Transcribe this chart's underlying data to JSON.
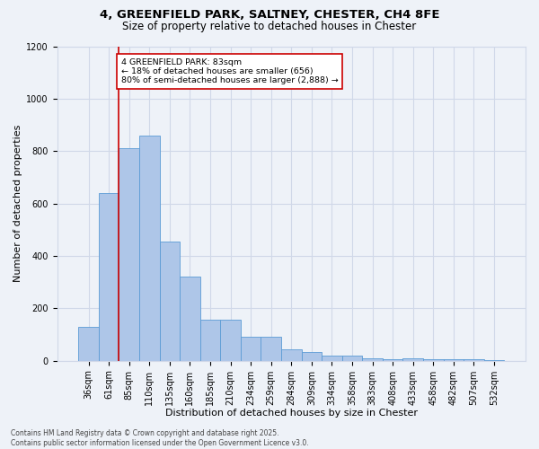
{
  "title_line1": "4, GREENFIELD PARK, SALTNEY, CHESTER, CH4 8FE",
  "title_line2": "Size of property relative to detached houses in Chester",
  "xlabel": "Distribution of detached houses by size in Chester",
  "ylabel": "Number of detached properties",
  "categories": [
    "36sqm",
    "61sqm",
    "85sqm",
    "110sqm",
    "135sqm",
    "160sqm",
    "185sqm",
    "210sqm",
    "234sqm",
    "259sqm",
    "284sqm",
    "309sqm",
    "334sqm",
    "358sqm",
    "383sqm",
    "408sqm",
    "433sqm",
    "458sqm",
    "482sqm",
    "507sqm",
    "532sqm"
  ],
  "values": [
    130,
    640,
    810,
    860,
    455,
    320,
    155,
    155,
    90,
    90,
    45,
    35,
    20,
    20,
    10,
    5,
    10,
    5,
    5,
    5,
    2
  ],
  "bar_color": "#aec6e8",
  "bar_edge_color": "#5b9bd5",
  "grid_color": "#d0d8e8",
  "background_color": "#eef2f8",
  "vline_x": 1.5,
  "vline_color": "#cc0000",
  "annotation_text": "4 GREENFIELD PARK: 83sqm\n← 18% of detached houses are smaller (656)\n80% of semi-detached houses are larger (2,888) →",
  "annotation_box_color": "#ffffff",
  "annotation_box_edge": "#cc0000",
  "ylim": [
    0,
    1200
  ],
  "yticks": [
    0,
    200,
    400,
    600,
    800,
    1000,
    1200
  ],
  "footer_line1": "Contains HM Land Registry data © Crown copyright and database right 2025.",
  "footer_line2": "Contains public sector information licensed under the Open Government Licence v3.0."
}
